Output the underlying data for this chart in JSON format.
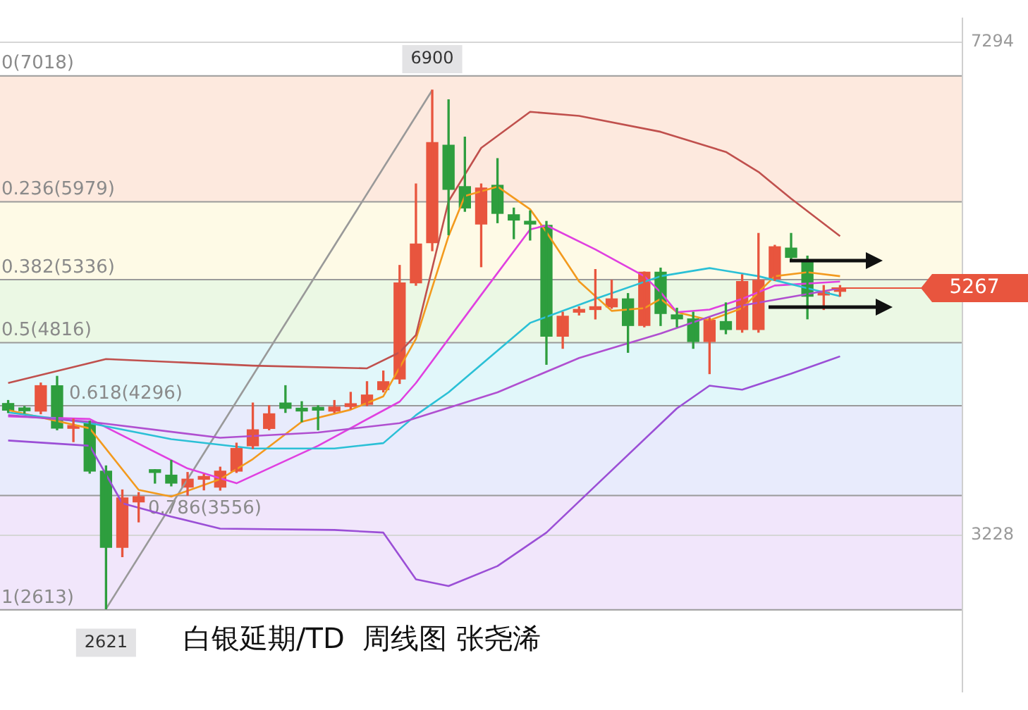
{
  "chart_data": {
    "type": "candlestick",
    "title": "白银延期/TD  周线图 张尧浠",
    "categories": [
      null,
      null,
      null,
      null,
      null,
      null,
      null,
      null,
      null,
      null,
      null,
      null,
      null,
      null,
      null,
      null,
      null,
      null,
      null,
      null,
      null,
      null,
      null,
      null,
      null,
      null,
      null,
      null,
      null,
      null,
      null,
      null,
      null,
      null,
      null,
      null,
      null,
      null,
      null,
      null,
      null,
      null,
      null,
      null,
      null,
      null,
      null,
      null,
      null,
      null,
      null,
      null,
      null,
      null,
      null,
      null,
      null,
      null,
      null
    ],
    "ohlc": [
      [
        4315,
        4340,
        4240,
        4260
      ],
      [
        4265,
        4290,
        4235,
        4255
      ],
      [
        4252,
        4484,
        4230,
        4462
      ],
      [
        4462,
        4539,
        4098,
        4112
      ],
      [
        4110,
        4187,
        4000,
        4125
      ],
      [
        4153,
        4170,
        3740,
        3757
      ],
      [
        3757,
        3800,
        2621,
        3128
      ],
      [
        3128,
        3602,
        3051,
        3536
      ],
      [
        3503,
        3580,
        3338,
        3547
      ],
      [
        3768,
        3770,
        3658,
        3746
      ],
      [
        3724,
        3845,
        3635,
        3658
      ],
      [
        3625,
        3746,
        3558,
        3691
      ],
      [
        3690,
        3730,
        3602,
        3700
      ],
      [
        3625,
        3790,
        3600,
        3757
      ],
      [
        3757,
        3988,
        3746,
        3944
      ],
      [
        3966,
        4319,
        3944,
        4098
      ],
      [
        4109,
        4297,
        4098,
        4230
      ],
      [
        4319,
        4462,
        4241,
        4275
      ],
      [
        4263,
        4330,
        4164,
        4253
      ],
      [
        4270,
        4297,
        4098,
        4260
      ],
      [
        4252,
        4340,
        4240,
        4286
      ],
      [
        4290,
        4407,
        4270,
        4300
      ],
      [
        4308,
        4495,
        4297,
        4385
      ],
      [
        4429,
        4583,
        4410,
        4495
      ],
      [
        4517,
        5454,
        4480,
        5310
      ],
      [
        5310,
        6126,
        5290,
        5630
      ],
      [
        5641,
        6900,
        5575,
        6468
      ],
      [
        6445,
        6820,
        5707,
        6082
      ],
      [
        6104,
        6512,
        5900,
        5928
      ],
      [
        5795,
        6126,
        5443,
        6093
      ],
      [
        6115,
        6335,
        5806,
        5883
      ],
      [
        5872,
        5927,
        5674,
        5828
      ],
      [
        5817,
        5904,
        5663,
        5795
      ],
      [
        5784,
        5817,
        4638,
        4870
      ],
      [
        4870,
        5068,
        4770,
        5035
      ],
      [
        5068,
        5112,
        5045,
        5080
      ],
      [
        5090,
        5420,
        5012,
        5110
      ],
      [
        5112,
        5332,
        5100,
        5178
      ],
      [
        5178,
        5222,
        4737,
        4958
      ],
      [
        4958,
        5400,
        4947,
        5398
      ],
      [
        5398,
        5432,
        4958,
        5057
      ],
      [
        5046,
        5101,
        4947,
        5013
      ],
      [
        5013,
        5068,
        4770,
        4826
      ],
      [
        4826,
        5020,
        4561,
        5002
      ],
      [
        4991,
        5145,
        4890,
        4925
      ],
      [
        4925,
        5377,
        4903,
        5321
      ],
      [
        4925,
        5718,
        4903,
        5332
      ],
      [
        5343,
        5620,
        5330,
        5608
      ],
      [
        5597,
        5718,
        5500,
        5520
      ],
      [
        5487,
        5531,
        5013,
        5200
      ],
      [
        5210,
        5288,
        5090,
        5230
      ],
      [
        5240,
        5288,
        5200,
        5267
      ],
      null,
      null,
      null,
      null,
      null,
      null,
      null
    ],
    "colors": [
      "#2e9e3e",
      "#2e9e3e",
      "#e8553e",
      "#2e9e3e",
      "#e8553e",
      "#2e9e3e",
      "#2e9e3e",
      "#e8553e",
      "#e8553e",
      "#2e9e3e",
      "#2e9e3e",
      "#e8553e",
      "#e8553e",
      "#e8553e",
      "#e8553e",
      "#e8553e",
      "#e8553e",
      "#2e9e3e",
      "#2e9e3e",
      "#2e9e3e",
      "#e8553e",
      "#e8553e",
      "#e8553e",
      "#e8553e",
      "#e8553e",
      "#e8553e",
      "#e8553e",
      "#2e9e3e",
      "#2e9e3e",
      "#e8553e",
      "#2e9e3e",
      "#2e9e3e",
      "#2e9e3e",
      "#2e9e3e",
      "#e8553e",
      "#e8553e",
      "#e8553e",
      "#e8553e",
      "#2e9e3e",
      "#e8553e",
      "#2e9e3e",
      "#2e9e3e",
      "#2e9e3e",
      "#e8553e",
      "#2e9e3e",
      "#e8553e",
      "#e8553e",
      "#e8553e",
      "#2e9e3e",
      "#2e9e3e",
      "#e8553e",
      "#e8553e",
      null,
      null,
      null,
      null,
      null,
      null,
      null
    ],
    "series": [
      {
        "type": "line",
        "color": "#c0504d",
        "values": [
          4484,
          null,
          null,
          null,
          null,
          null,
          4682,
          null,
          null,
          null,
          null,
          null,
          null,
          null,
          null,
          4627,
          null,
          null,
          null,
          null,
          null,
          null,
          4605,
          null,
          4737,
          4880,
          null,
          5983,
          null,
          6423,
          null,
          null,
          6721,
          null,
          null,
          6688,
          null,
          null,
          null,
          null,
          6556,
          null,
          null,
          null,
          6390,
          null,
          6225,
          null,
          6005,
          null,
          null,
          5696,
          null,
          null,
          null,
          null,
          null,
          null,
          null
        ]
      },
      {
        "type": "line",
        "color": "#9b4fd6",
        "values": [
          4010,
          null,
          null,
          null,
          null,
          3966,
          null,
          3492,
          null,
          null,
          3382,
          null,
          null,
          3283,
          null,
          null,
          null,
          null,
          null,
          null,
          3272,
          null,
          null,
          3250,
          null,
          2864,
          null,
          2809,
          null,
          null,
          2974,
          null,
          null,
          3250,
          null,
          null,
          3635,
          null,
          null,
          null,
          null,
          4275,
          null,
          4462,
          null,
          4429,
          null,
          null,
          4561,
          null,
          null,
          4704,
          null,
          null,
          null,
          null,
          null,
          null,
          null
        ]
      },
      {
        "type": "line",
        "color": "#b04fd0",
        "values": [
          4219,
          null,
          null,
          null,
          null,
          4164,
          null,
          null,
          null,
          null,
          null,
          null,
          null,
          4032,
          null,
          null,
          null,
          null,
          null,
          4076,
          null,
          null,
          null,
          null,
          4153,
          null,
          null,
          null,
          null,
          null,
          4407,
          null,
          null,
          null,
          null,
          4690,
          null,
          null,
          null,
          null,
          4892,
          null,
          null,
          null,
          null,
          5123,
          null,
          null,
          null,
          null,
          null,
          5266,
          null,
          null,
          null,
          null,
          null,
          null,
          null
        ]
      },
      {
        "type": "line",
        "color": "#2bc0d6",
        "values": [
          4241,
          null,
          null,
          null,
          null,
          4153,
          null,
          null,
          null,
          null,
          4021,
          null,
          null,
          null,
          null,
          3944,
          null,
          null,
          null,
          null,
          3944,
          null,
          null,
          3988,
          null,
          4219,
          null,
          4407,
          null,
          null,
          null,
          null,
          4980,
          null,
          null,
          null,
          5178,
          null,
          null,
          null,
          5365,
          null,
          null,
          5432,
          null,
          null,
          5365,
          null,
          null,
          5266,
          null,
          5200,
          null,
          null,
          null,
          null,
          null,
          null,
          null
        ]
      },
      {
        "type": "line",
        "color": "#e040e0",
        "values": [
          4208,
          null,
          null,
          null,
          null,
          4187,
          null,
          null,
          null,
          null,
          null,
          3779,
          null,
          null,
          3657,
          null,
          null,
          null,
          null,
          3966,
          null,
          null,
          null,
          null,
          4330,
          4484,
          null,
          null,
          null,
          5211,
          null,
          null,
          5751,
          5784,
          null,
          null,
          5586,
          null,
          null,
          5365,
          5233,
          5068,
          null,
          5090,
          null,
          5178,
          null,
          5288,
          null,
          null,
          null,
          5321,
          null,
          null,
          null,
          null,
          null,
          null,
          null
        ]
      },
      {
        "type": "line",
        "color": "#f39a1e",
        "values": [
          4260,
          null,
          null,
          null,
          null,
          4110,
          null,
          null,
          3602,
          null,
          3547,
          null,
          null,
          3691,
          null,
          3856,
          null,
          null,
          4164,
          null,
          null,
          4264,
          null,
          4374,
          null,
          4848,
          null,
          5696,
          6027,
          null,
          6104,
          null,
          5917,
          5729,
          null,
          5322,
          null,
          5079,
          null,
          5101,
          5178,
          5068,
          null,
          5002,
          null,
          5101,
          null,
          5365,
          null,
          5398,
          null,
          5365,
          null,
          null,
          null,
          null,
          null,
          null,
          null
        ]
      },
      {
        "type": "line",
        "color": "#999999",
        "values": [
          null,
          null,
          null,
          null,
          null,
          null,
          2621,
          null,
          null,
          null,
          null,
          null,
          null,
          null,
          null,
          null,
          null,
          null,
          null,
          null,
          null,
          null,
          null,
          null,
          null,
          null,
          6900,
          null,
          null,
          null,
          null,
          null,
          null,
          null,
          null,
          null,
          null,
          null,
          null,
          null,
          null,
          null,
          null,
          null,
          null,
          null,
          null,
          null,
          null,
          null,
          null,
          null,
          null,
          null,
          null,
          null,
          null,
          null,
          null
        ]
      }
    ],
    "ylim": [
      1940,
      7490
    ],
    "yticks": [
      7294,
      3228
    ],
    "grid": "y",
    "tick_labels": "y",
    "legend": false,
    "marker": "none",
    "bands": [
      {
        "axis": "y",
        "from": 5979,
        "to": 7018,
        "color": "#fde9de"
      },
      {
        "axis": "y",
        "from": 5336,
        "to": 5979,
        "color": "#fefae6"
      },
      {
        "axis": "y",
        "from": 4816,
        "to": 5336,
        "color": "#ebf8e4"
      },
      {
        "axis": "y",
        "from": 4296,
        "to": 4816,
        "color": "#e1f7fa"
      },
      {
        "axis": "y",
        "from": 3556,
        "to": 4296,
        "color": "#e8ebfc"
      },
      {
        "axis": "y",
        "from": 2613,
        "to": 3556,
        "color": "#f1e6fb"
      }
    ],
    "ref_lines": [
      {
        "axis": "y",
        "value": 7018,
        "label": "0(7018)"
      },
      {
        "axis": "y",
        "value": 5979,
        "label": "0.236(5979)"
      },
      {
        "axis": "y",
        "value": 5336,
        "label": "0.382(5336)"
      },
      {
        "axis": "y",
        "value": 4816,
        "label": "0.5(4816)"
      },
      {
        "axis": "y",
        "value": 4296,
        "label": "0.618(4296)"
      },
      {
        "axis": "y",
        "value": 3556,
        "label": "0.786(3556)"
      },
      {
        "axis": "y",
        "value": 2613,
        "label": "1(2613)"
      },
      {
        "axis": "y",
        "value": 5267,
        "label": "5267",
        "color": "#e8553e"
      }
    ],
    "annotations": [
      {
        "text": "6900",
        "y": 6900
      },
      {
        "text": "2621",
        "y": 2621
      }
    ]
  }
}
